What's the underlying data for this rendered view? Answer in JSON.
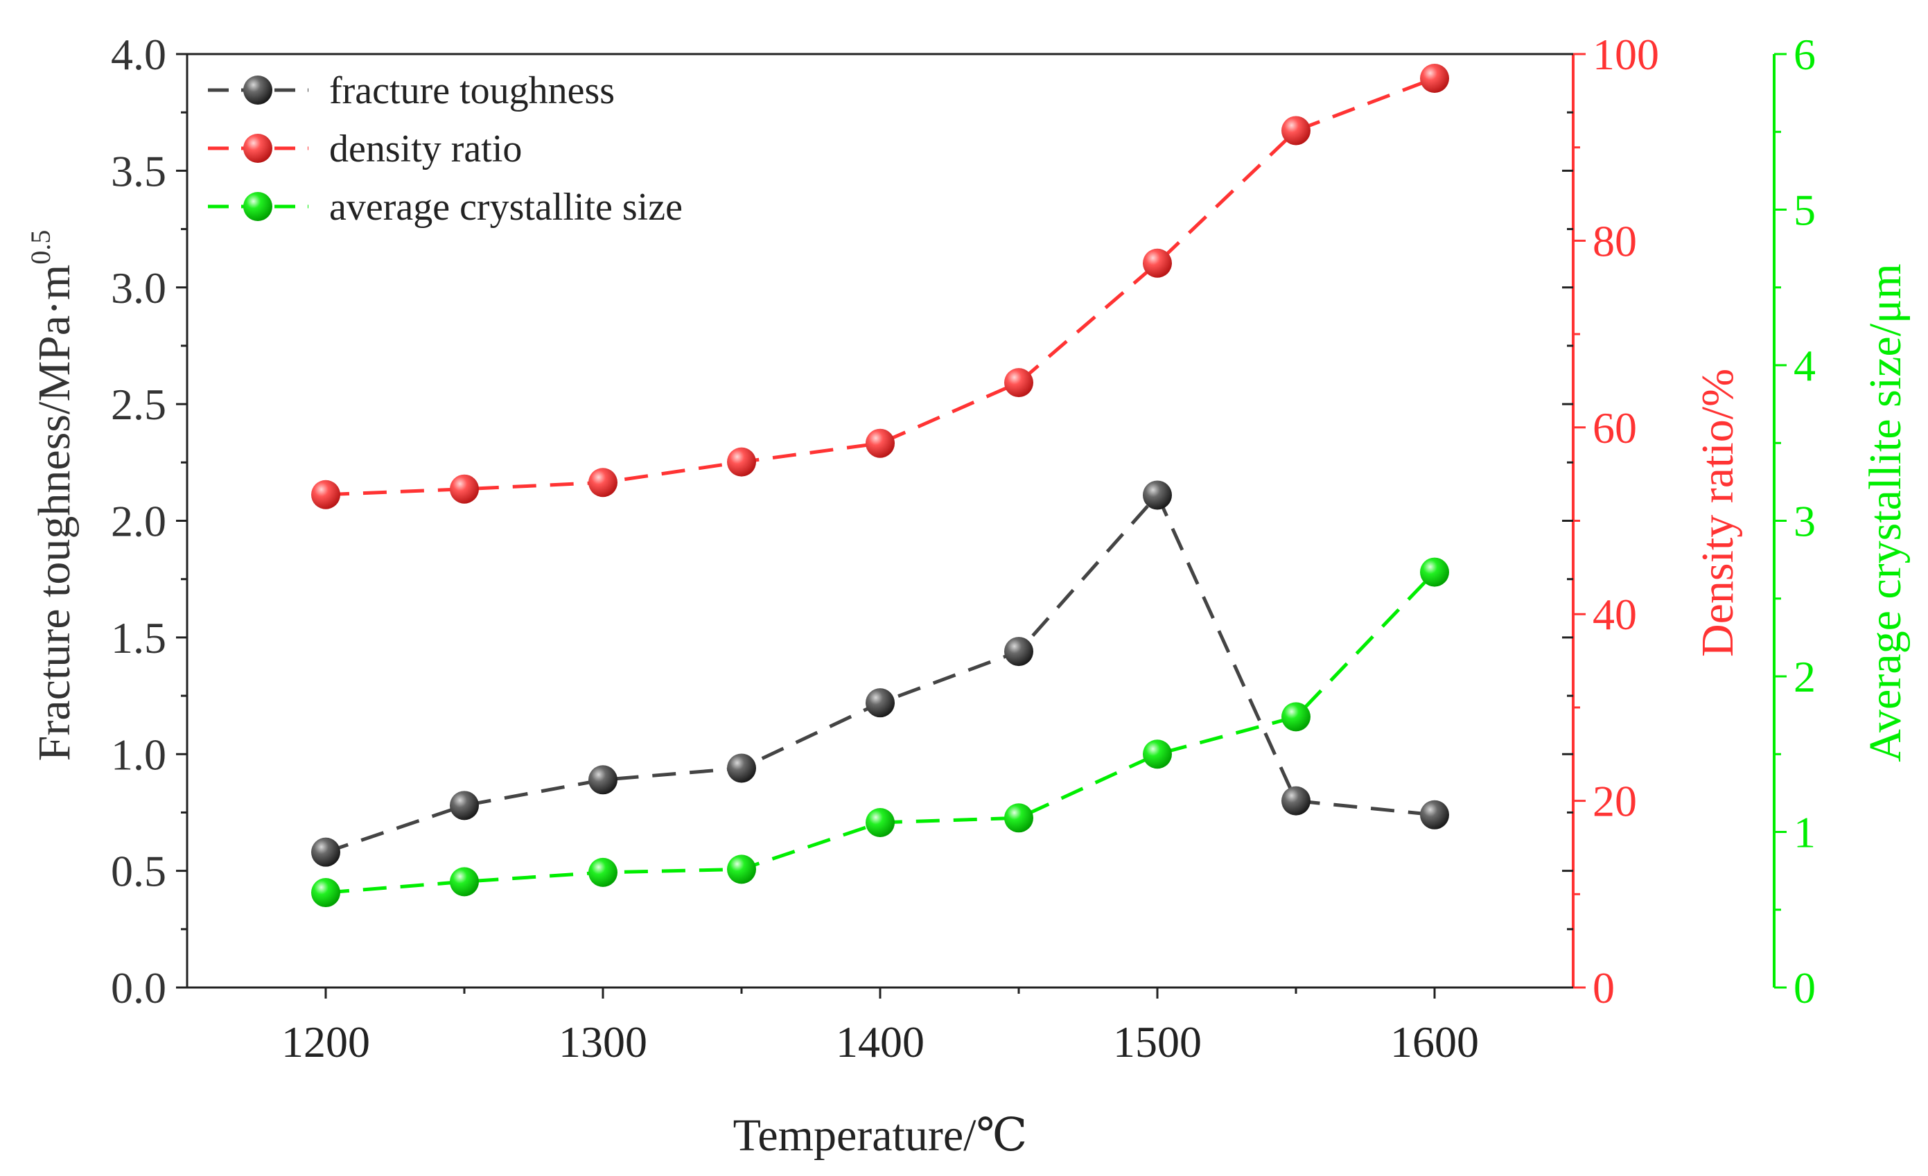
{
  "chart_data": {
    "type": "line",
    "x": [
      1200,
      1250,
      1300,
      1350,
      1400,
      1450,
      1500,
      1550,
      1600
    ],
    "xlim": [
      1150,
      1650
    ],
    "x_ticks": [
      1200,
      1300,
      1400,
      1500,
      1600
    ],
    "x_tick_labels": [
      "1200",
      "1300",
      "1400",
      "1500",
      "1600"
    ],
    "xlabel": "Temperature/℃",
    "axes": {
      "left": {
        "label_main": "Fracture toughness/MPa·m",
        "label_sup": "0.5",
        "ylim": [
          0,
          4
        ],
        "ticks": [
          0,
          0.5,
          1,
          1.5,
          2,
          2.5,
          3,
          3.5,
          4
        ],
        "tick_labels": [
          "0.0",
          "0.5",
          "1.0",
          "1.5",
          "2.0",
          "2.5",
          "3.0",
          "3.5",
          "4.0"
        ],
        "color": "#333333"
      },
      "right1": {
        "label": "Density ratio/%",
        "ylim": [
          0,
          100
        ],
        "ticks": [
          0,
          20,
          40,
          60,
          80,
          100
        ],
        "tick_labels": [
          "0",
          "20",
          "40",
          "60",
          "80",
          "100"
        ],
        "color": "#ff3333"
      },
      "right2": {
        "label": "Average crystallite size/μm",
        "ylim": [
          0,
          6
        ],
        "ticks": [
          0,
          1,
          2,
          3,
          4,
          5,
          6
        ],
        "tick_labels": [
          "0",
          "1",
          "2",
          "3",
          "4",
          "5",
          "6"
        ],
        "color": "#00ee00"
      }
    },
    "series": [
      {
        "name": "fracture toughness",
        "axis": "left",
        "color": "#444444",
        "values": [
          0.58,
          0.78,
          0.89,
          0.94,
          1.22,
          1.44,
          2.11,
          0.8,
          0.74
        ]
      },
      {
        "name": "density ratio",
        "axis": "right1",
        "color": "#ff3333",
        "values": [
          52.8,
          53.4,
          54.1,
          56.3,
          58.3,
          64.8,
          77.6,
          91.8,
          97.4
        ]
      },
      {
        "name": "average crystallite size",
        "axis": "right2",
        "color": "#00ee00",
        "values": [
          0.61,
          0.68,
          0.74,
          0.76,
          1.06,
          1.09,
          1.5,
          1.74,
          2.67
        ]
      }
    ],
    "legend_position": "top-left"
  }
}
